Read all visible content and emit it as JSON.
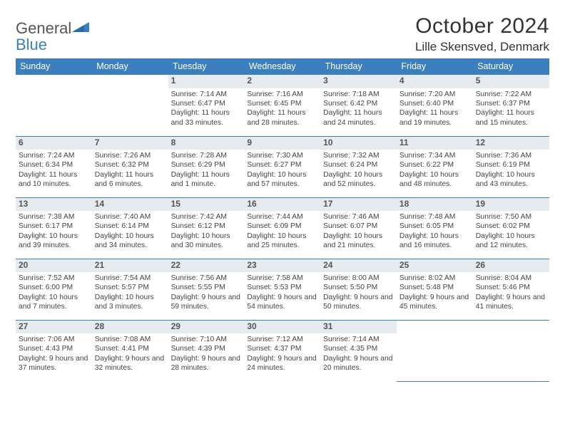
{
  "logo": {
    "gray": "General",
    "blue": "Blue"
  },
  "title": "October 2024",
  "location": "Lille Skensved, Denmark",
  "header_bg": "#3b7fbf",
  "daynum_bg": "#e6ebef",
  "weekdays": [
    "Sunday",
    "Monday",
    "Tuesday",
    "Wednesday",
    "Thursday",
    "Friday",
    "Saturday"
  ],
  "weeks": [
    [
      null,
      null,
      {
        "n": "1",
        "sr": "7:14 AM",
        "ss": "6:47 PM",
        "dl": "11 hours and 33 minutes."
      },
      {
        "n": "2",
        "sr": "7:16 AM",
        "ss": "6:45 PM",
        "dl": "11 hours and 28 minutes."
      },
      {
        "n": "3",
        "sr": "7:18 AM",
        "ss": "6:42 PM",
        "dl": "11 hours and 24 minutes."
      },
      {
        "n": "4",
        "sr": "7:20 AM",
        "ss": "6:40 PM",
        "dl": "11 hours and 19 minutes."
      },
      {
        "n": "5",
        "sr": "7:22 AM",
        "ss": "6:37 PM",
        "dl": "11 hours and 15 minutes."
      }
    ],
    [
      {
        "n": "6",
        "sr": "7:24 AM",
        "ss": "6:34 PM",
        "dl": "11 hours and 10 minutes."
      },
      {
        "n": "7",
        "sr": "7:26 AM",
        "ss": "6:32 PM",
        "dl": "11 hours and 6 minutes."
      },
      {
        "n": "8",
        "sr": "7:28 AM",
        "ss": "6:29 PM",
        "dl": "11 hours and 1 minute."
      },
      {
        "n": "9",
        "sr": "7:30 AM",
        "ss": "6:27 PM",
        "dl": "10 hours and 57 minutes."
      },
      {
        "n": "10",
        "sr": "7:32 AM",
        "ss": "6:24 PM",
        "dl": "10 hours and 52 minutes."
      },
      {
        "n": "11",
        "sr": "7:34 AM",
        "ss": "6:22 PM",
        "dl": "10 hours and 48 minutes."
      },
      {
        "n": "12",
        "sr": "7:36 AM",
        "ss": "6:19 PM",
        "dl": "10 hours and 43 minutes."
      }
    ],
    [
      {
        "n": "13",
        "sr": "7:38 AM",
        "ss": "6:17 PM",
        "dl": "10 hours and 39 minutes."
      },
      {
        "n": "14",
        "sr": "7:40 AM",
        "ss": "6:14 PM",
        "dl": "10 hours and 34 minutes."
      },
      {
        "n": "15",
        "sr": "7:42 AM",
        "ss": "6:12 PM",
        "dl": "10 hours and 30 minutes."
      },
      {
        "n": "16",
        "sr": "7:44 AM",
        "ss": "6:09 PM",
        "dl": "10 hours and 25 minutes."
      },
      {
        "n": "17",
        "sr": "7:46 AM",
        "ss": "6:07 PM",
        "dl": "10 hours and 21 minutes."
      },
      {
        "n": "18",
        "sr": "7:48 AM",
        "ss": "6:05 PM",
        "dl": "10 hours and 16 minutes."
      },
      {
        "n": "19",
        "sr": "7:50 AM",
        "ss": "6:02 PM",
        "dl": "10 hours and 12 minutes."
      }
    ],
    [
      {
        "n": "20",
        "sr": "7:52 AM",
        "ss": "6:00 PM",
        "dl": "10 hours and 7 minutes."
      },
      {
        "n": "21",
        "sr": "7:54 AM",
        "ss": "5:57 PM",
        "dl": "10 hours and 3 minutes."
      },
      {
        "n": "22",
        "sr": "7:56 AM",
        "ss": "5:55 PM",
        "dl": "9 hours and 59 minutes."
      },
      {
        "n": "23",
        "sr": "7:58 AM",
        "ss": "5:53 PM",
        "dl": "9 hours and 54 minutes."
      },
      {
        "n": "24",
        "sr": "8:00 AM",
        "ss": "5:50 PM",
        "dl": "9 hours and 50 minutes."
      },
      {
        "n": "25",
        "sr": "8:02 AM",
        "ss": "5:48 PM",
        "dl": "9 hours and 45 minutes."
      },
      {
        "n": "26",
        "sr": "8:04 AM",
        "ss": "5:46 PM",
        "dl": "9 hours and 41 minutes."
      }
    ],
    [
      {
        "n": "27",
        "sr": "7:06 AM",
        "ss": "4:43 PM",
        "dl": "9 hours and 37 minutes."
      },
      {
        "n": "28",
        "sr": "7:08 AM",
        "ss": "4:41 PM",
        "dl": "9 hours and 32 minutes."
      },
      {
        "n": "29",
        "sr": "7:10 AM",
        "ss": "4:39 PM",
        "dl": "9 hours and 28 minutes."
      },
      {
        "n": "30",
        "sr": "7:12 AM",
        "ss": "4:37 PM",
        "dl": "9 hours and 24 minutes."
      },
      {
        "n": "31",
        "sr": "7:14 AM",
        "ss": "4:35 PM",
        "dl": "9 hours and 20 minutes."
      },
      null,
      null
    ]
  ],
  "labels": {
    "sunrise": "Sunrise:",
    "sunset": "Sunset:",
    "daylight": "Daylight:"
  }
}
